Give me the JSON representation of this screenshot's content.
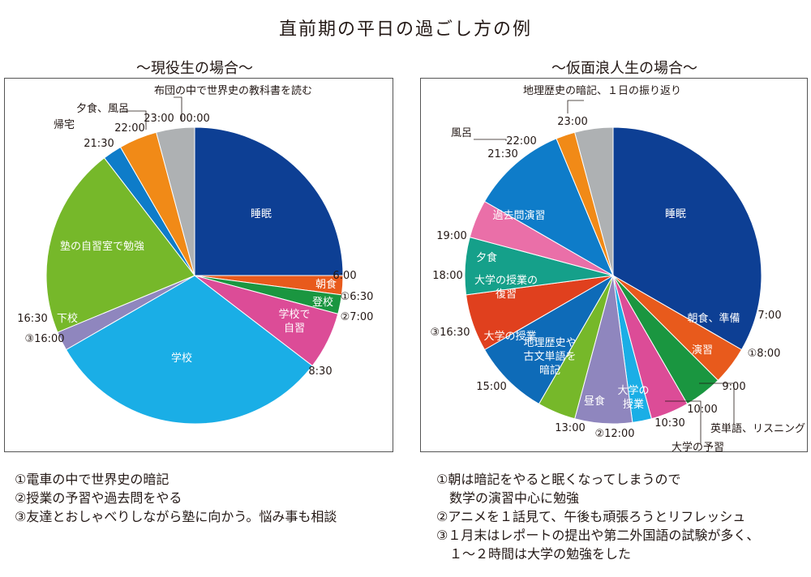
{
  "title": "直前期の平日の過ごし方の例",
  "charts": [
    {
      "subtitle": "〜現役生の場合〜",
      "notes": [
        "①電車の中で世界史の暗記",
        "②授業の予習や過去問をやる",
        "③友達とおしゃべりしながら塾に向かう。悩み事も相談"
      ]
    },
    {
      "subtitle": "〜仮面浪人生の場合〜",
      "notes": [
        "①朝は暗記をやると眠くなってしまうので",
        "　数学の演習中心に勉強",
        "②アニメを１話見て、午後も頑張ろうとリフレッシュ",
        "③１月末はレポートの提出や第二外国語の試験が多く、",
        "　１〜２時間は大学の勉強をした"
      ]
    }
  ],
  "chart_data": [
    {
      "type": "pie",
      "title": "〜現役生の場合〜",
      "start_time": "00:00",
      "slices": [
        {
          "label": "睡眠",
          "from": "00:00",
          "to": "6:00",
          "hours": 6,
          "color": "#0d3f94"
        },
        {
          "label": "朝食",
          "from": "6:00",
          "to": "6:30",
          "hours": 0.5,
          "color": "#e85a1c"
        },
        {
          "label": "登校",
          "from": "6:30",
          "to": "7:00",
          "hours": 0.5,
          "color": "#1a9640"
        },
        {
          "label": "学校で自習",
          "from": "7:00",
          "to": "8:30",
          "hours": 1.5,
          "color": "#dc4c97"
        },
        {
          "label": "学校",
          "from": "8:30",
          "to": "16:00",
          "hours": 7.5,
          "color": "#1aaee6"
        },
        {
          "label": "下校",
          "from": "16:00",
          "to": "16:30",
          "hours": 0.5,
          "color": "#8f86be"
        },
        {
          "label": "塾の自習室で勉強",
          "from": "16:30",
          "to": "21:30",
          "hours": 5,
          "color": "#76b82a"
        },
        {
          "label": "帰宅",
          "from": "21:30",
          "to": "22:00",
          "hours": 0.5,
          "color": "#0e7cc9"
        },
        {
          "label": "夕食、風呂",
          "from": "22:00",
          "to": "23:00",
          "hours": 1,
          "color": "#f18a17"
        },
        {
          "label": "布団の中で世界史の教科書を読む",
          "from": "23:00",
          "to": "00:00",
          "hours": 1,
          "color": "#aeb1b3"
        }
      ],
      "time_labels": [
        "00:00",
        "6:00",
        "①6:30",
        "②7:00",
        "8:30",
        "③16:00",
        "16:30",
        "21:30",
        "22:00",
        "23:00"
      ]
    },
    {
      "type": "pie",
      "title": "〜仮面浪人生の場合〜",
      "start_time": "23:00",
      "slices": [
        {
          "label": "睡眠",
          "from": "23:00",
          "to": "7:00",
          "hours": 8,
          "color": "#0d3f94"
        },
        {
          "label": "朝食、準備",
          "from": "7:00",
          "to": "8:00",
          "hours": 1,
          "color": "#e85a1c"
        },
        {
          "label": "演習",
          "from": "8:00",
          "to": "9:00",
          "hours": 1,
          "color": "#1a9640"
        },
        {
          "label": "英単語、リスニング",
          "from": "9:00",
          "to": "10:00",
          "hours": 1,
          "color": "#dc4c97"
        },
        {
          "label": "大学の予習",
          "from": "10:00",
          "to": "10:30",
          "hours": 0.5,
          "color": "#1aaee6"
        },
        {
          "label": "大学の授業",
          "from": "10:30",
          "to": "12:00",
          "hours": 1.5,
          "color": "#8f86be"
        },
        {
          "label": "昼食",
          "from": "12:00",
          "to": "13:00",
          "hours": 1,
          "color": "#76b82a"
        },
        {
          "label": "地理歴史や古文単語を暗記",
          "from": "13:00",
          "to": "15:00",
          "hours": 2,
          "color": "#0e6bb8"
        },
        {
          "label": "大学の授業",
          "from": "15:00",
          "to": "16:30",
          "hours": 1.5,
          "color": "#e0401e"
        },
        {
          "label": "大学の授業の復習",
          "from": "16:30",
          "to": "18:00",
          "hours": 1.5,
          "color": "#15a08a"
        },
        {
          "label": "夕食",
          "from": "18:00",
          "to": "19:00",
          "hours": 1,
          "color": "#ea6fa8"
        },
        {
          "label": "過去問演習",
          "from": "19:00",
          "to": "21:30",
          "hours": 2.5,
          "color": "#0e7cc9"
        },
        {
          "label": "風呂",
          "from": "21:30",
          "to": "22:00",
          "hours": 0.5,
          "color": "#f18a17"
        },
        {
          "label": "地理歴史の暗記、１日の振り返り",
          "from": "22:00",
          "to": "23:00",
          "hours": 1,
          "color": "#aeb1b3"
        }
      ],
      "time_labels": [
        "23:00",
        "7:00",
        "①8:00",
        "9:00",
        "10:00",
        "10:30",
        "②12:00",
        "13:00",
        "15:00",
        "③16:30",
        "18:00",
        "19:00",
        "21:30",
        "22:00"
      ]
    }
  ]
}
